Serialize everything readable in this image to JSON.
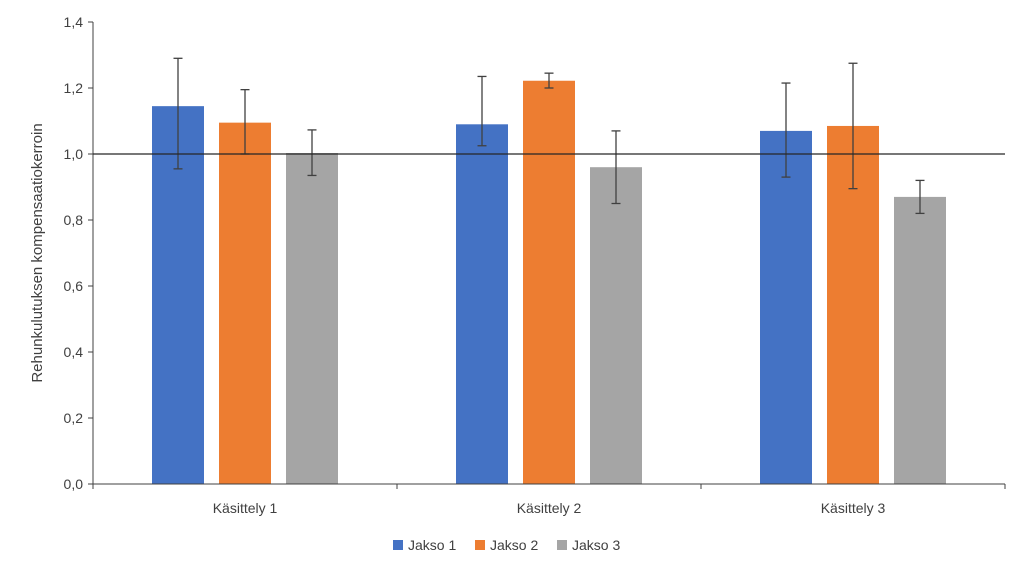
{
  "chart_data": {
    "type": "bar",
    "categories": [
      "Käsittely 1",
      "Käsittely 2",
      "Käsittely 3"
    ],
    "series": [
      {
        "name": "Jakso 1",
        "color": "#4472c4",
        "values": [
          1.145,
          1.09,
          1.07
        ],
        "err_low": [
          0.955,
          1.025,
          0.93
        ],
        "err_high": [
          1.29,
          1.235,
          1.215
        ]
      },
      {
        "name": "Jakso 2",
        "color": "#ed7d31",
        "values": [
          1.095,
          1.222,
          1.085
        ],
        "err_low": [
          1.0,
          1.2,
          0.895
        ],
        "err_high": [
          1.195,
          1.245,
          1.275
        ]
      },
      {
        "name": "Jakso 3",
        "color": "#a5a5a5",
        "values": [
          1.003,
          0.96,
          0.87
        ],
        "err_low": [
          0.935,
          0.85,
          0.82
        ],
        "err_high": [
          1.073,
          1.07,
          0.92
        ]
      }
    ],
    "ylabel": "Rehunkulutuksen kompensaatiokerroin",
    "xlabel": "",
    "title": "",
    "ylim": [
      0,
      1.4
    ],
    "yticks": [
      "0,0",
      "0,2",
      "0,4",
      "0,6",
      "0,8",
      "1,0",
      "1,2",
      "1,4"
    ],
    "reference_line": 1.0,
    "grid": false,
    "legend_position": "bottom"
  }
}
